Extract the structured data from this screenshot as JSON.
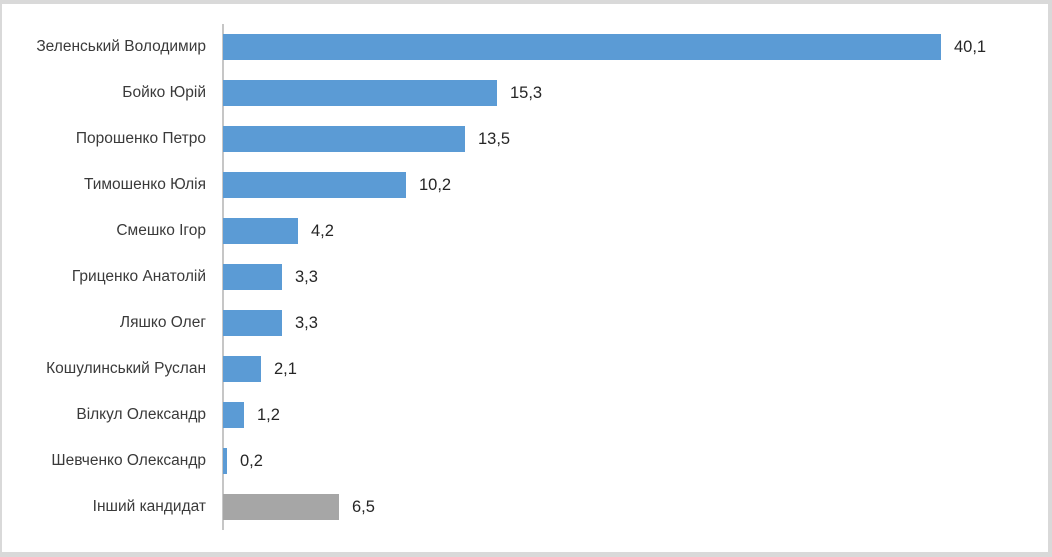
{
  "chart_data": {
    "type": "bar",
    "orientation": "horizontal",
    "title": "",
    "xlabel": "",
    "ylabel": "",
    "categories": [
      "Зеленський Володимир",
      "Бойко Юрій",
      "Порошенко Петро",
      "Тимошенко Юлія",
      "Смешко Ігор",
      "Гриценко Анатолій",
      "Ляшко Олег",
      "Кошулинський Руслан",
      "Вілкул Олександр",
      "Шевченко Олександр",
      "Інший кандидат"
    ],
    "values": [
      40.1,
      15.3,
      13.5,
      10.2,
      4.2,
      3.3,
      3.3,
      2.1,
      1.2,
      0.2,
      6.5
    ],
    "value_labels": [
      "40,1",
      "15,3",
      "13,5",
      "10,2",
      "4,2",
      "3,3",
      "3,3",
      "2,1",
      "1,2",
      "0,2",
      "6,5"
    ],
    "colors": [
      "#5b9bd5",
      "#5b9bd5",
      "#5b9bd5",
      "#5b9bd5",
      "#5b9bd5",
      "#5b9bd5",
      "#5b9bd5",
      "#5b9bd5",
      "#5b9bd5",
      "#5b9bd5",
      "#a6a6a6"
    ],
    "xlim": [
      0,
      45
    ],
    "grid": false,
    "legend": null,
    "data_label_position": "outside-end",
    "decimal_separator": ",",
    "accent_color": "#5b9bd5",
    "other_bar_color": "#a6a6a6",
    "axis_line_color": "#c6c6c6",
    "frame_color": "#d9d9d9"
  }
}
